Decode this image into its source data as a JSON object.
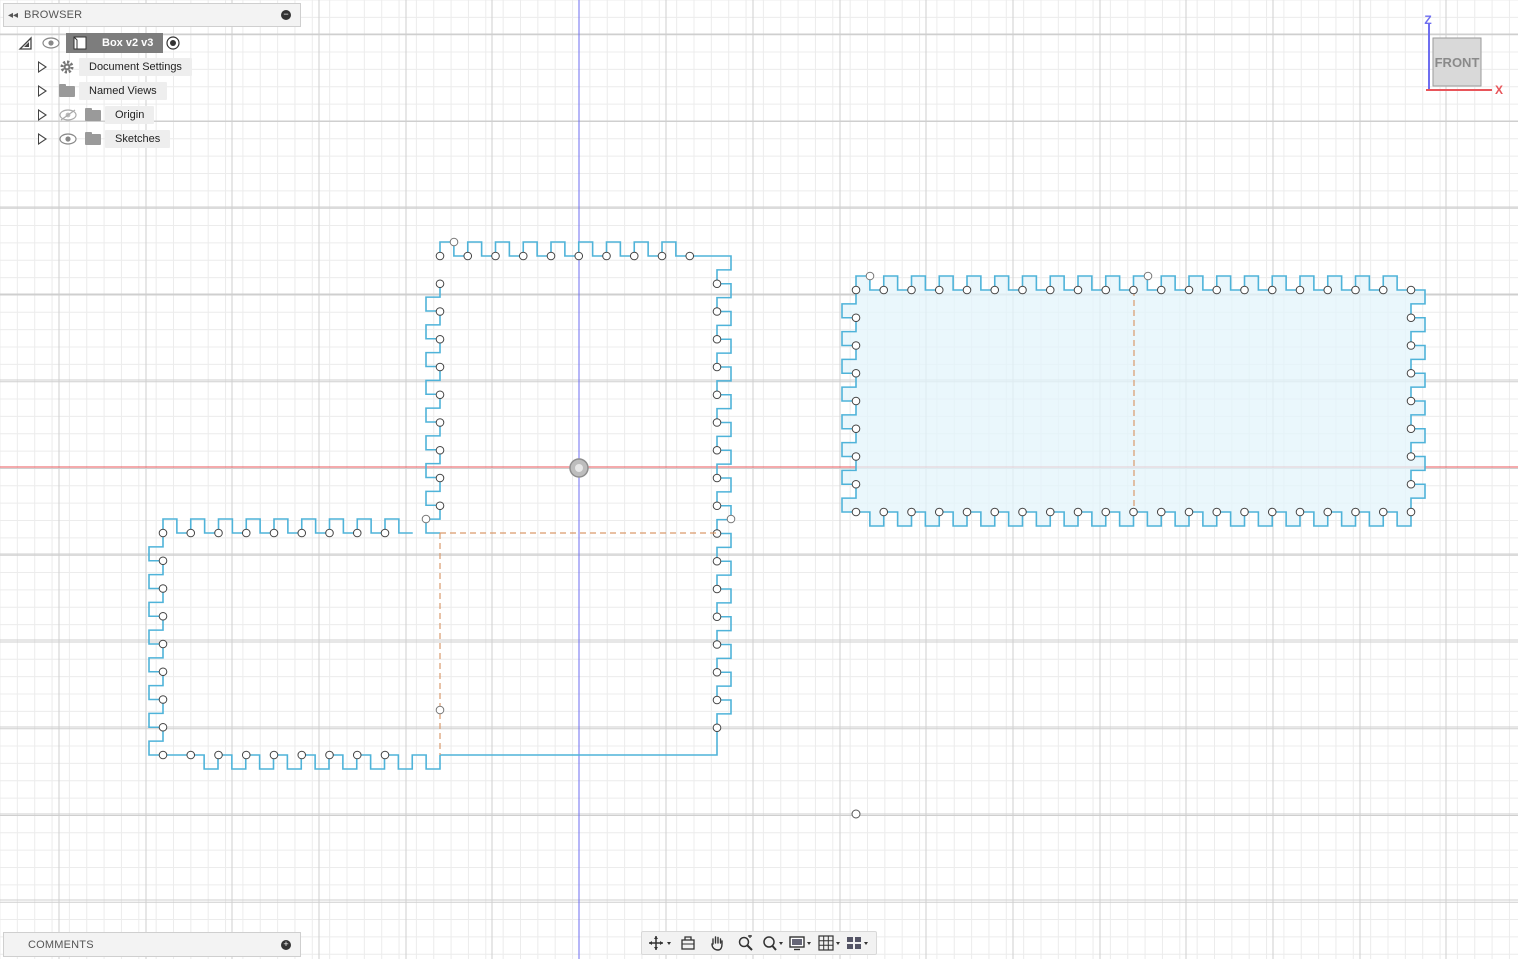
{
  "browser": {
    "title": "BROWSER",
    "collapse_glyph": "◂◂",
    "minimize_glyph": "−",
    "root": {
      "label": "Box v2 v3"
    },
    "items": [
      {
        "label": "Document Settings",
        "icon": "gear-icon"
      },
      {
        "label": "Named Views",
        "icon": "folder-icon"
      },
      {
        "label": "Origin",
        "icon": "folder-icon",
        "visibility": "hidden"
      },
      {
        "label": "Sketches",
        "icon": "folder-icon",
        "visibility": "visible"
      }
    ]
  },
  "comments": {
    "title": "COMMENTS",
    "add_glyph": "+"
  },
  "viewcube": {
    "face_label": "FRONT",
    "axis_z": "Z",
    "axis_x": "X"
  },
  "toolbar": {
    "tools": [
      {
        "name": "orbit-tool",
        "icon": "orbit-icon",
        "dropdown": true
      },
      {
        "name": "look-at-tool",
        "icon": "look-at-icon",
        "dropdown": false
      },
      {
        "name": "pan-tool",
        "icon": "hand-icon",
        "dropdown": false
      },
      {
        "name": "zoom-tool",
        "icon": "zoom-icon",
        "dropdown": false
      },
      {
        "name": "fit-tool",
        "icon": "zoom-window-icon",
        "dropdown": true
      },
      {
        "name": "display-settings-tool",
        "icon": "monitor-icon",
        "dropdown": true
      },
      {
        "name": "grid-settings-tool",
        "icon": "grid-icon",
        "dropdown": true
      },
      {
        "name": "viewports-tool",
        "icon": "viewports-icon",
        "dropdown": true
      }
    ]
  },
  "colors": {
    "sketch_profile": "#4fb3d9",
    "sketch_fill": "#e3f4fb",
    "construction": "#d99a6c",
    "axis_x": "#e8555a",
    "axis_z": "#6e6ef0",
    "grid_major": "#cfcfcf",
    "grid_minor": "#ececec"
  }
}
